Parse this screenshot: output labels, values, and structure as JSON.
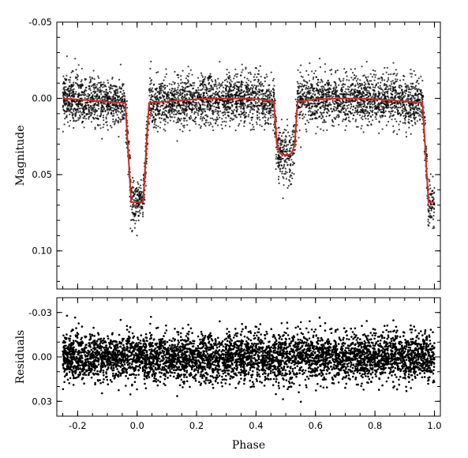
{
  "chart_data": [
    {
      "type": "scatter",
      "panel": "light-curve",
      "xlim": [
        -0.27,
        1.02
      ],
      "ylim": [
        0.125,
        -0.05
      ],
      "y_reversed": true,
      "ylabel": "Magnitude",
      "xticks": [
        -0.2,
        0.0,
        0.2,
        0.4,
        0.6,
        0.8,
        1.0
      ],
      "yticks": [
        -0.05,
        0.0,
        0.05,
        0.1
      ],
      "ytick_labels": [
        "-0.05",
        "0.00",
        "0.05",
        "0.10"
      ],
      "grid": false,
      "point_color": "#000000",
      "model_color": "#d42b20",
      "observations": {
        "x_range": [
          -0.25,
          1.0
        ],
        "scatter_mag": 0.008,
        "description": "dense cloud of observed photometry points"
      },
      "model_curve": {
        "name": "",
        "x": [
          -0.25,
          -0.04,
          -0.02,
          -0.01,
          0.0,
          0.01,
          0.02,
          0.04,
          0.1,
          0.2,
          0.25,
          0.3,
          0.35,
          0.4,
          0.46,
          0.47,
          0.48,
          0.49,
          0.5,
          0.51,
          0.52,
          0.53,
          0.54,
          0.6,
          0.7,
          0.75,
          0.8,
          0.9,
          0.96,
          0.98,
          0.99,
          1.0
        ],
        "y": [
          0.0,
          0.003,
          0.068,
          0.068,
          0.068,
          0.068,
          0.068,
          0.003,
          0.002,
          0.0005,
          0.0,
          0.0,
          0.0,
          0.0005,
          0.002,
          0.03,
          0.036,
          0.037,
          0.037,
          0.037,
          0.036,
          0.03,
          0.002,
          0.0005,
          0.0,
          0.0,
          0.0005,
          0.002,
          0.003,
          0.068,
          0.068,
          0.068
        ]
      }
    },
    {
      "type": "scatter",
      "panel": "residuals",
      "xlim": [
        -0.27,
        1.02
      ],
      "ylim": [
        0.04,
        -0.04
      ],
      "y_reversed": true,
      "xlabel": "Phase",
      "ylabel": "Residuals",
      "xticks": [
        -0.2,
        0.0,
        0.2,
        0.4,
        0.6,
        0.8,
        1.0
      ],
      "xtick_labels": [
        "-0.2",
        "0.0",
        "0.2",
        "0.4",
        "0.6",
        "0.8",
        "1.0"
      ],
      "yticks": [
        -0.03,
        0.0,
        0.03
      ],
      "ytick_labels": [
        "-0.03",
        "0.00",
        "0.03"
      ],
      "grid": false,
      "point_color": "#000000",
      "residuals": {
        "x_range": [
          -0.25,
          1.0
        ],
        "scatter_mag": 0.008,
        "zero_line": 0.0
      }
    }
  ]
}
